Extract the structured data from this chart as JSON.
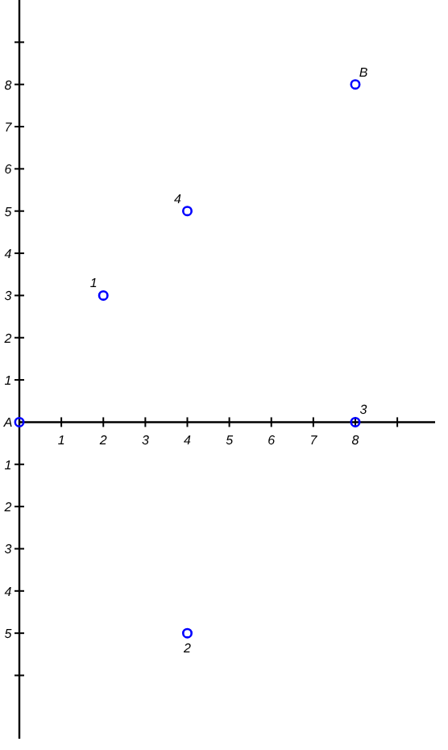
{
  "chart_data": {
    "type": "scatter",
    "x": [
      0,
      2,
      4,
      8,
      8,
      4
    ],
    "series": [
      {
        "color": "#0000ff",
        "values": [
          0,
          3,
          5,
          8,
          0,
          -5
        ]
      }
    ],
    "marker": "circle",
    "grid": false,
    "xlim": [
      0,
      9.9
    ],
    "ylim": [
      -7.5,
      10
    ],
    "xticks": [
      1,
      2,
      3,
      4,
      5,
      6,
      7,
      8,
      {
        "value": 9,
        "label": null
      }
    ],
    "yticks": [
      {
        "value": -6,
        "label": null
      },
      {
        "value": -5,
        "label": "5"
      },
      {
        "value": -4,
        "label": "4"
      },
      {
        "value": -3,
        "label": "3"
      },
      {
        "value": -2,
        "label": "2"
      },
      {
        "value": -1,
        "label": "1"
      },
      1,
      2,
      3,
      4,
      5,
      6,
      7,
      8,
      {
        "value": 9,
        "label": null
      }
    ],
    "annotations": [
      {
        "text": "A",
        "x": 0,
        "y": 0
      },
      {
        "text": "1",
        "x": 2,
        "y": 3
      },
      {
        "text": "4",
        "x": 4,
        "y": 5
      },
      {
        "text": "B",
        "x": 8,
        "y": 8
      },
      {
        "text": "3",
        "x": 8,
        "y": 0
      },
      {
        "text": "2",
        "x": 4,
        "y": -5
      }
    ]
  }
}
